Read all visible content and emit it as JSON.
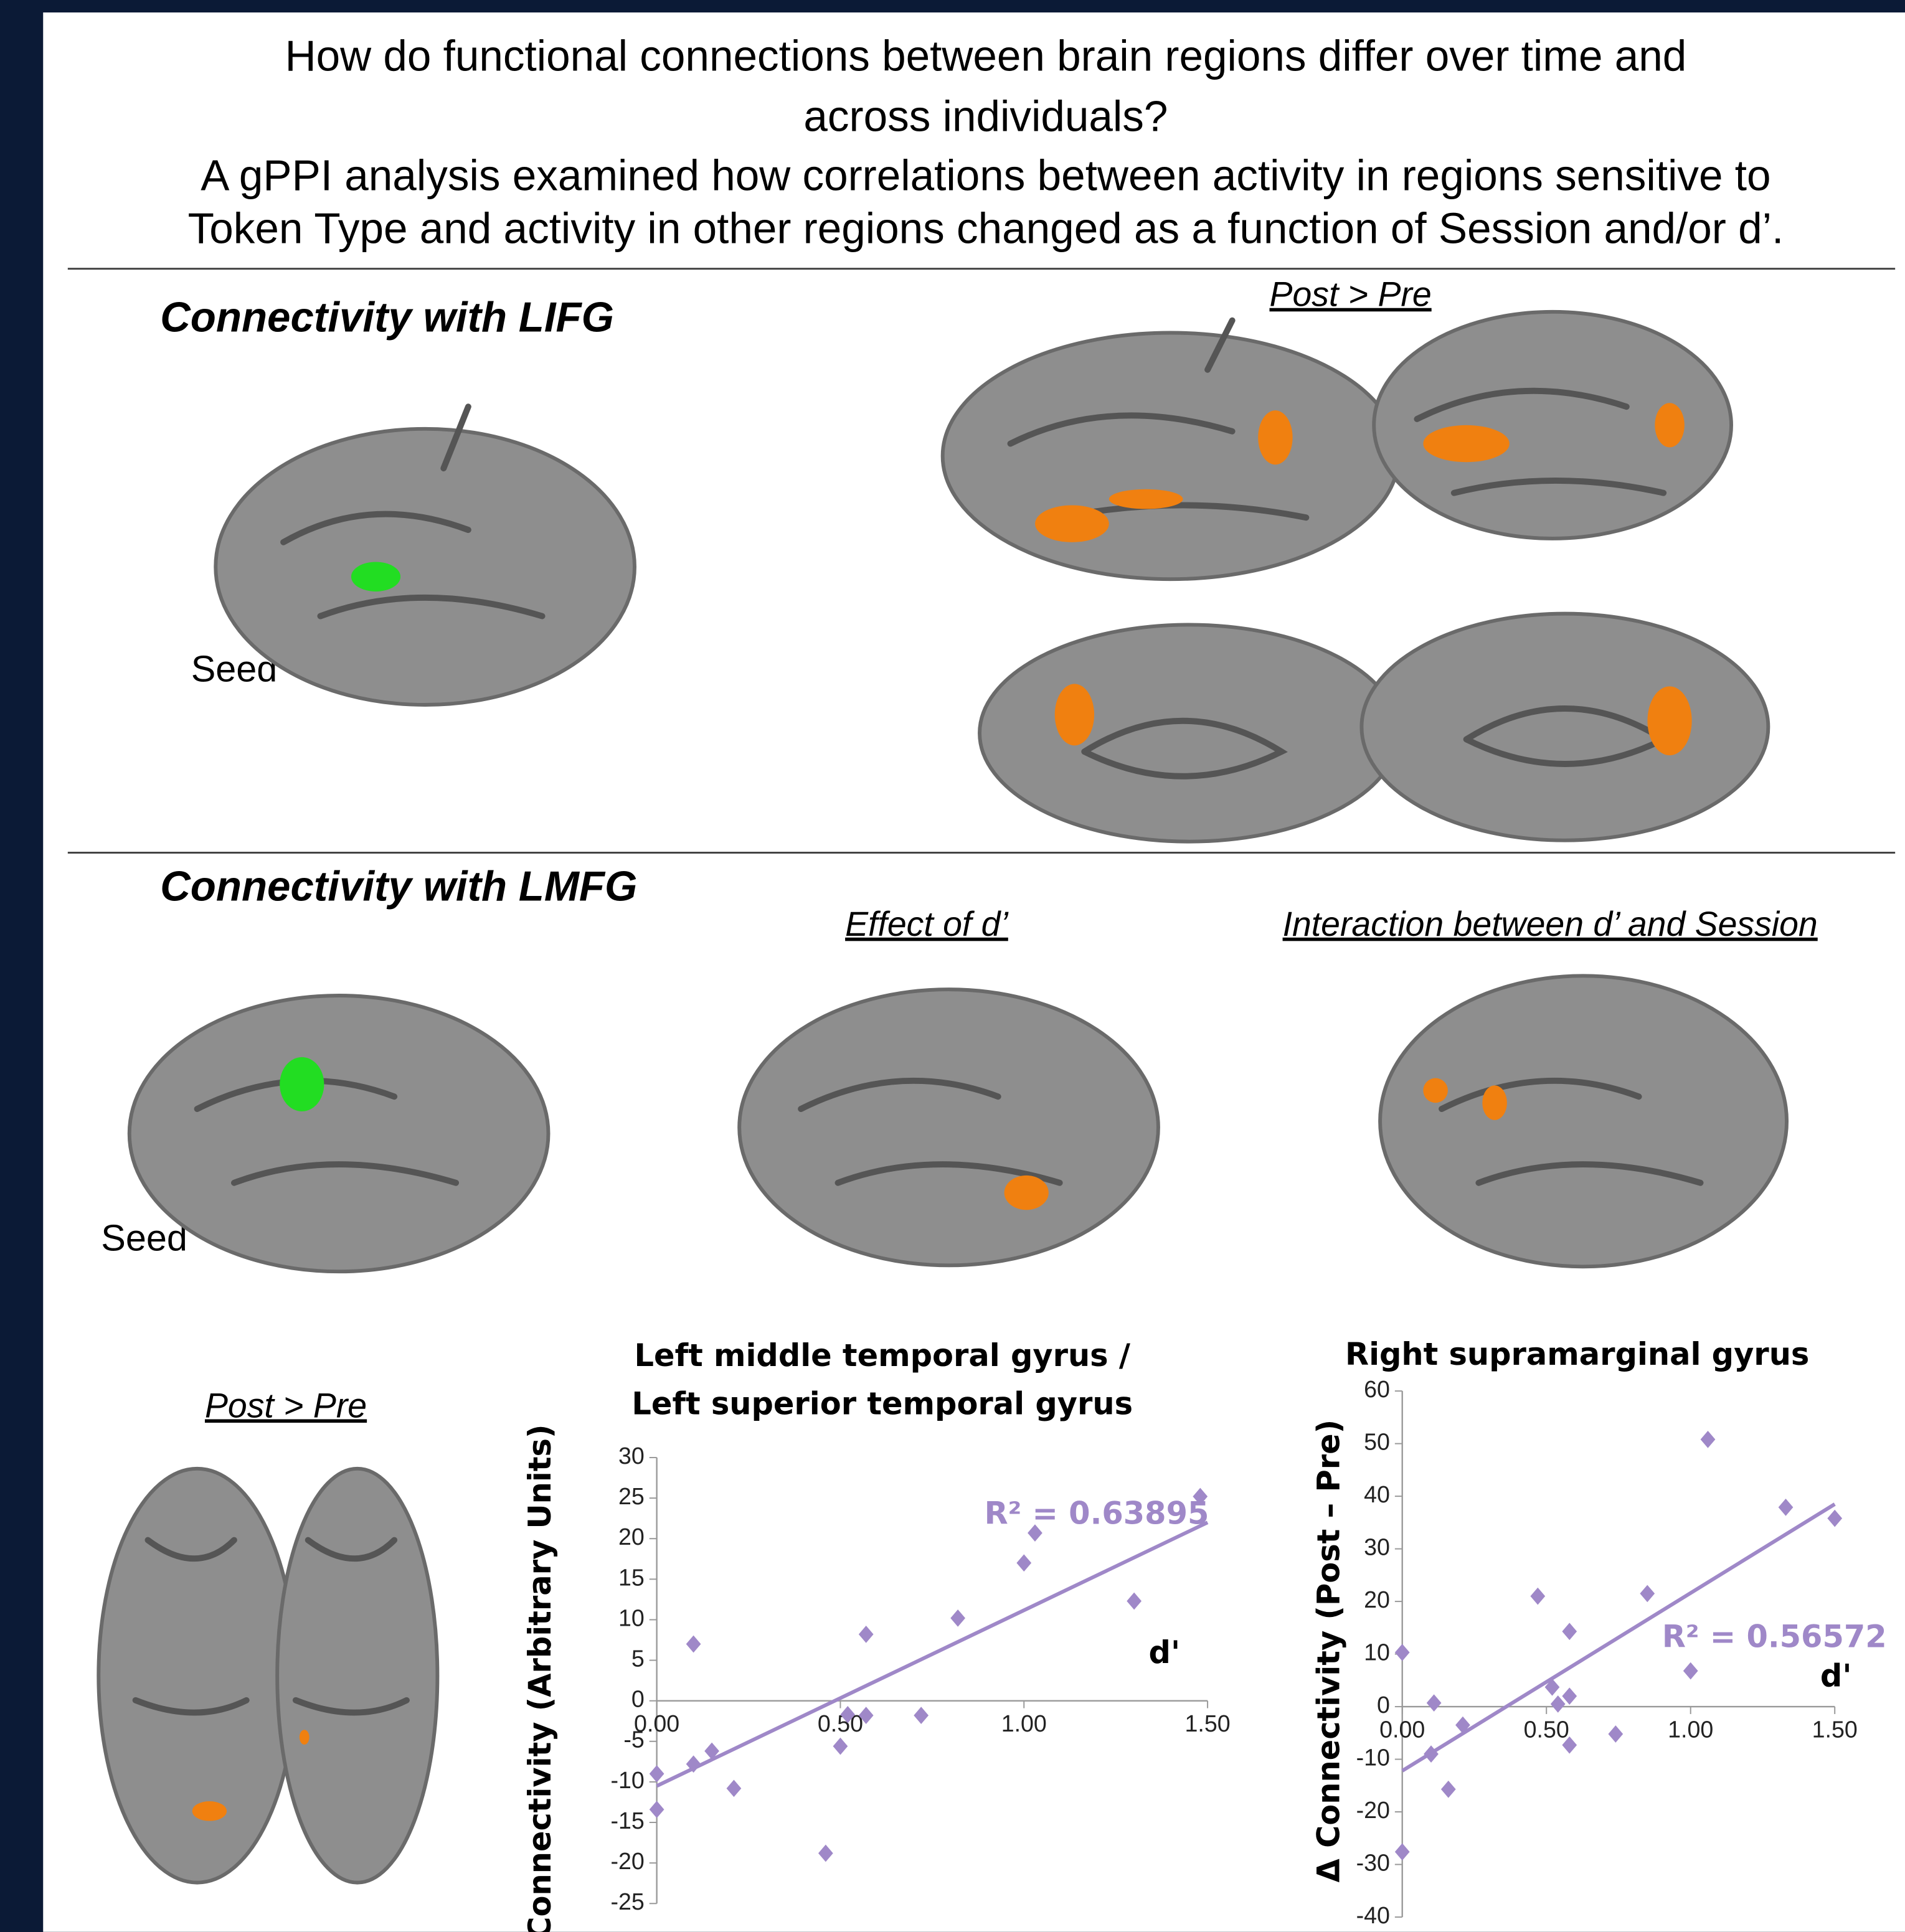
{
  "header": {
    "lines": [
      "How do functional connections between brain regions differ over time and",
      "across individuals?",
      "A gPPI analysis examined how correlations between activity in regions sensitive to",
      "Token Type and activity in other regions changed as a function of Session and/or d’."
    ]
  },
  "sections": [
    {
      "title": "Connectivity with LIFG",
      "panels": [
        {
          "label": "Seed"
        },
        {
          "label": "Post > Pre"
        }
      ]
    },
    {
      "title": "Connectivity with LMFG",
      "panels": [
        {
          "label": "Seed"
        },
        {
          "label": "Effect of d’"
        },
        {
          "label": "Interaction between d’ and Session"
        },
        {
          "label": "Post > Pre"
        }
      ]
    }
  ],
  "chart_data": [
    {
      "type": "scatter",
      "title": [
        "Left middle temporal gyrus /",
        "Left superior temporal gyrus"
      ],
      "xlabel": "d'",
      "ylabel": "Connectivity (Arbitrary Units)",
      "color": "#9f88c8",
      "x": [
        0,
        0,
        0.1,
        0.1,
        0.15,
        0.21,
        0.46,
        0.52,
        0.5,
        0.57,
        0.57,
        0.72,
        0.82,
        1.0,
        1.03,
        1.3,
        1.48
      ],
      "values": [
        -9,
        -13.4,
        7,
        -7.8,
        -6.2,
        -10.8,
        -18.8,
        -1.7,
        -5.6,
        -1.8,
        8.2,
        -1.8,
        10.2,
        17,
        20.7,
        12.3,
        25.2
      ],
      "xlim": [
        0,
        1.5
      ],
      "ylim": [
        -25,
        30
      ],
      "xticks": [
        {
          "value": 0,
          "label": "0.00"
        },
        {
          "value": 0.5,
          "label": "0.50"
        },
        {
          "value": 1,
          "label": "1.00"
        },
        {
          "value": 1.5,
          "label": "1.50"
        }
      ],
      "yticks": [
        -25,
        -20,
        -15,
        -10,
        -5,
        0,
        5,
        10,
        15,
        20,
        25,
        30
      ],
      "trendline": {
        "x": [
          0,
          1.5
        ],
        "y": [
          -10.5,
          22
        ]
      },
      "annotation": "R² = 0.63895"
    },
    {
      "type": "scatter",
      "title": [
        "Right supramarginal gyrus"
      ],
      "xlabel": "d'",
      "ylabel": "Δ Connectivity (Post – Pre)",
      "color": "#9f88c8",
      "x": [
        0,
        0,
        0.11,
        0.1,
        0.16,
        0.21,
        0.47,
        0.52,
        0.54,
        0.58,
        0.58,
        0.58,
        0.74,
        0.85,
        1.0,
        1.06,
        1.33,
        1.5
      ],
      "values": [
        10.3,
        -27.6,
        0.7,
        -9,
        -15.7,
        -3.5,
        21,
        3.7,
        0.5,
        14.3,
        2,
        -7.3,
        -5.2,
        21.5,
        6.8,
        50.8,
        37.9,
        35.8
      ],
      "xlim": [
        0,
        1.5
      ],
      "ylim": [
        -40,
        60
      ],
      "xticks": [
        {
          "value": 0,
          "label": "0.00"
        },
        {
          "value": 0.5,
          "label": "0.50"
        },
        {
          "value": 1,
          "label": "1.00"
        },
        {
          "value": 1.5,
          "label": "1.50"
        }
      ],
      "yticks": [
        -40,
        -30,
        -20,
        -10,
        0,
        10,
        20,
        30,
        40,
        50,
        60
      ],
      "trendline": {
        "x": [
          0,
          1.5
        ],
        "y": [
          -12.2,
          38.5
        ]
      },
      "annotation": "R² = 0.56572"
    }
  ]
}
